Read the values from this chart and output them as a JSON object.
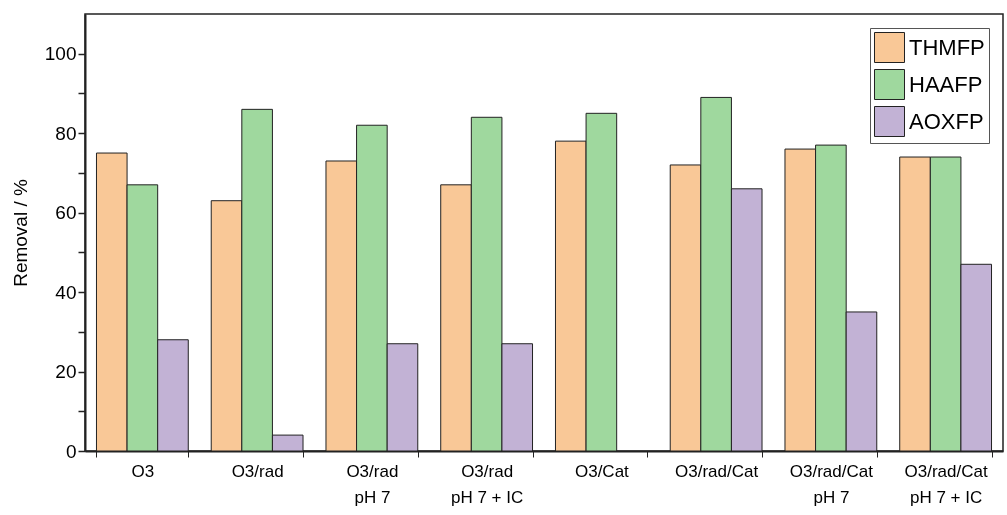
{
  "chart_data": {
    "type": "bar",
    "ylabel": "Removal / %",
    "categories": [
      "O3",
      "O3/rad",
      "O3/rad\npH 7",
      "O3/rad\npH 7 + IC",
      "O3/Cat",
      "O3/rad/Cat",
      "O3/rad/Cat\npH 7",
      "O3/rad/Cat\npH 7 + IC"
    ],
    "series": [
      {
        "name": "THMFP",
        "color": "#f9c897",
        "values": [
          75,
          63,
          73,
          67,
          78,
          72,
          76,
          74
        ]
      },
      {
        "name": "HAAFP",
        "color": "#9fd89e",
        "values": [
          67,
          86,
          82,
          84,
          85,
          89,
          77,
          74
        ]
      },
      {
        "name": "AOXFP",
        "color": "#c2b2d5",
        "values": [
          28,
          4,
          27,
          27,
          null,
          66,
          35,
          47
        ]
      }
    ],
    "ylim": [
      0,
      110
    ],
    "yticks": [
      0,
      {
        "value": 10,
        "label": null
      },
      20,
      {
        "value": 30,
        "label": null
      },
      40,
      {
        "value": 50,
        "label": null
      },
      60,
      {
        "value": 70,
        "label": null
      },
      80,
      {
        "value": 90,
        "label": null
      },
      100
    ],
    "grid": false,
    "legend": "top right"
  }
}
